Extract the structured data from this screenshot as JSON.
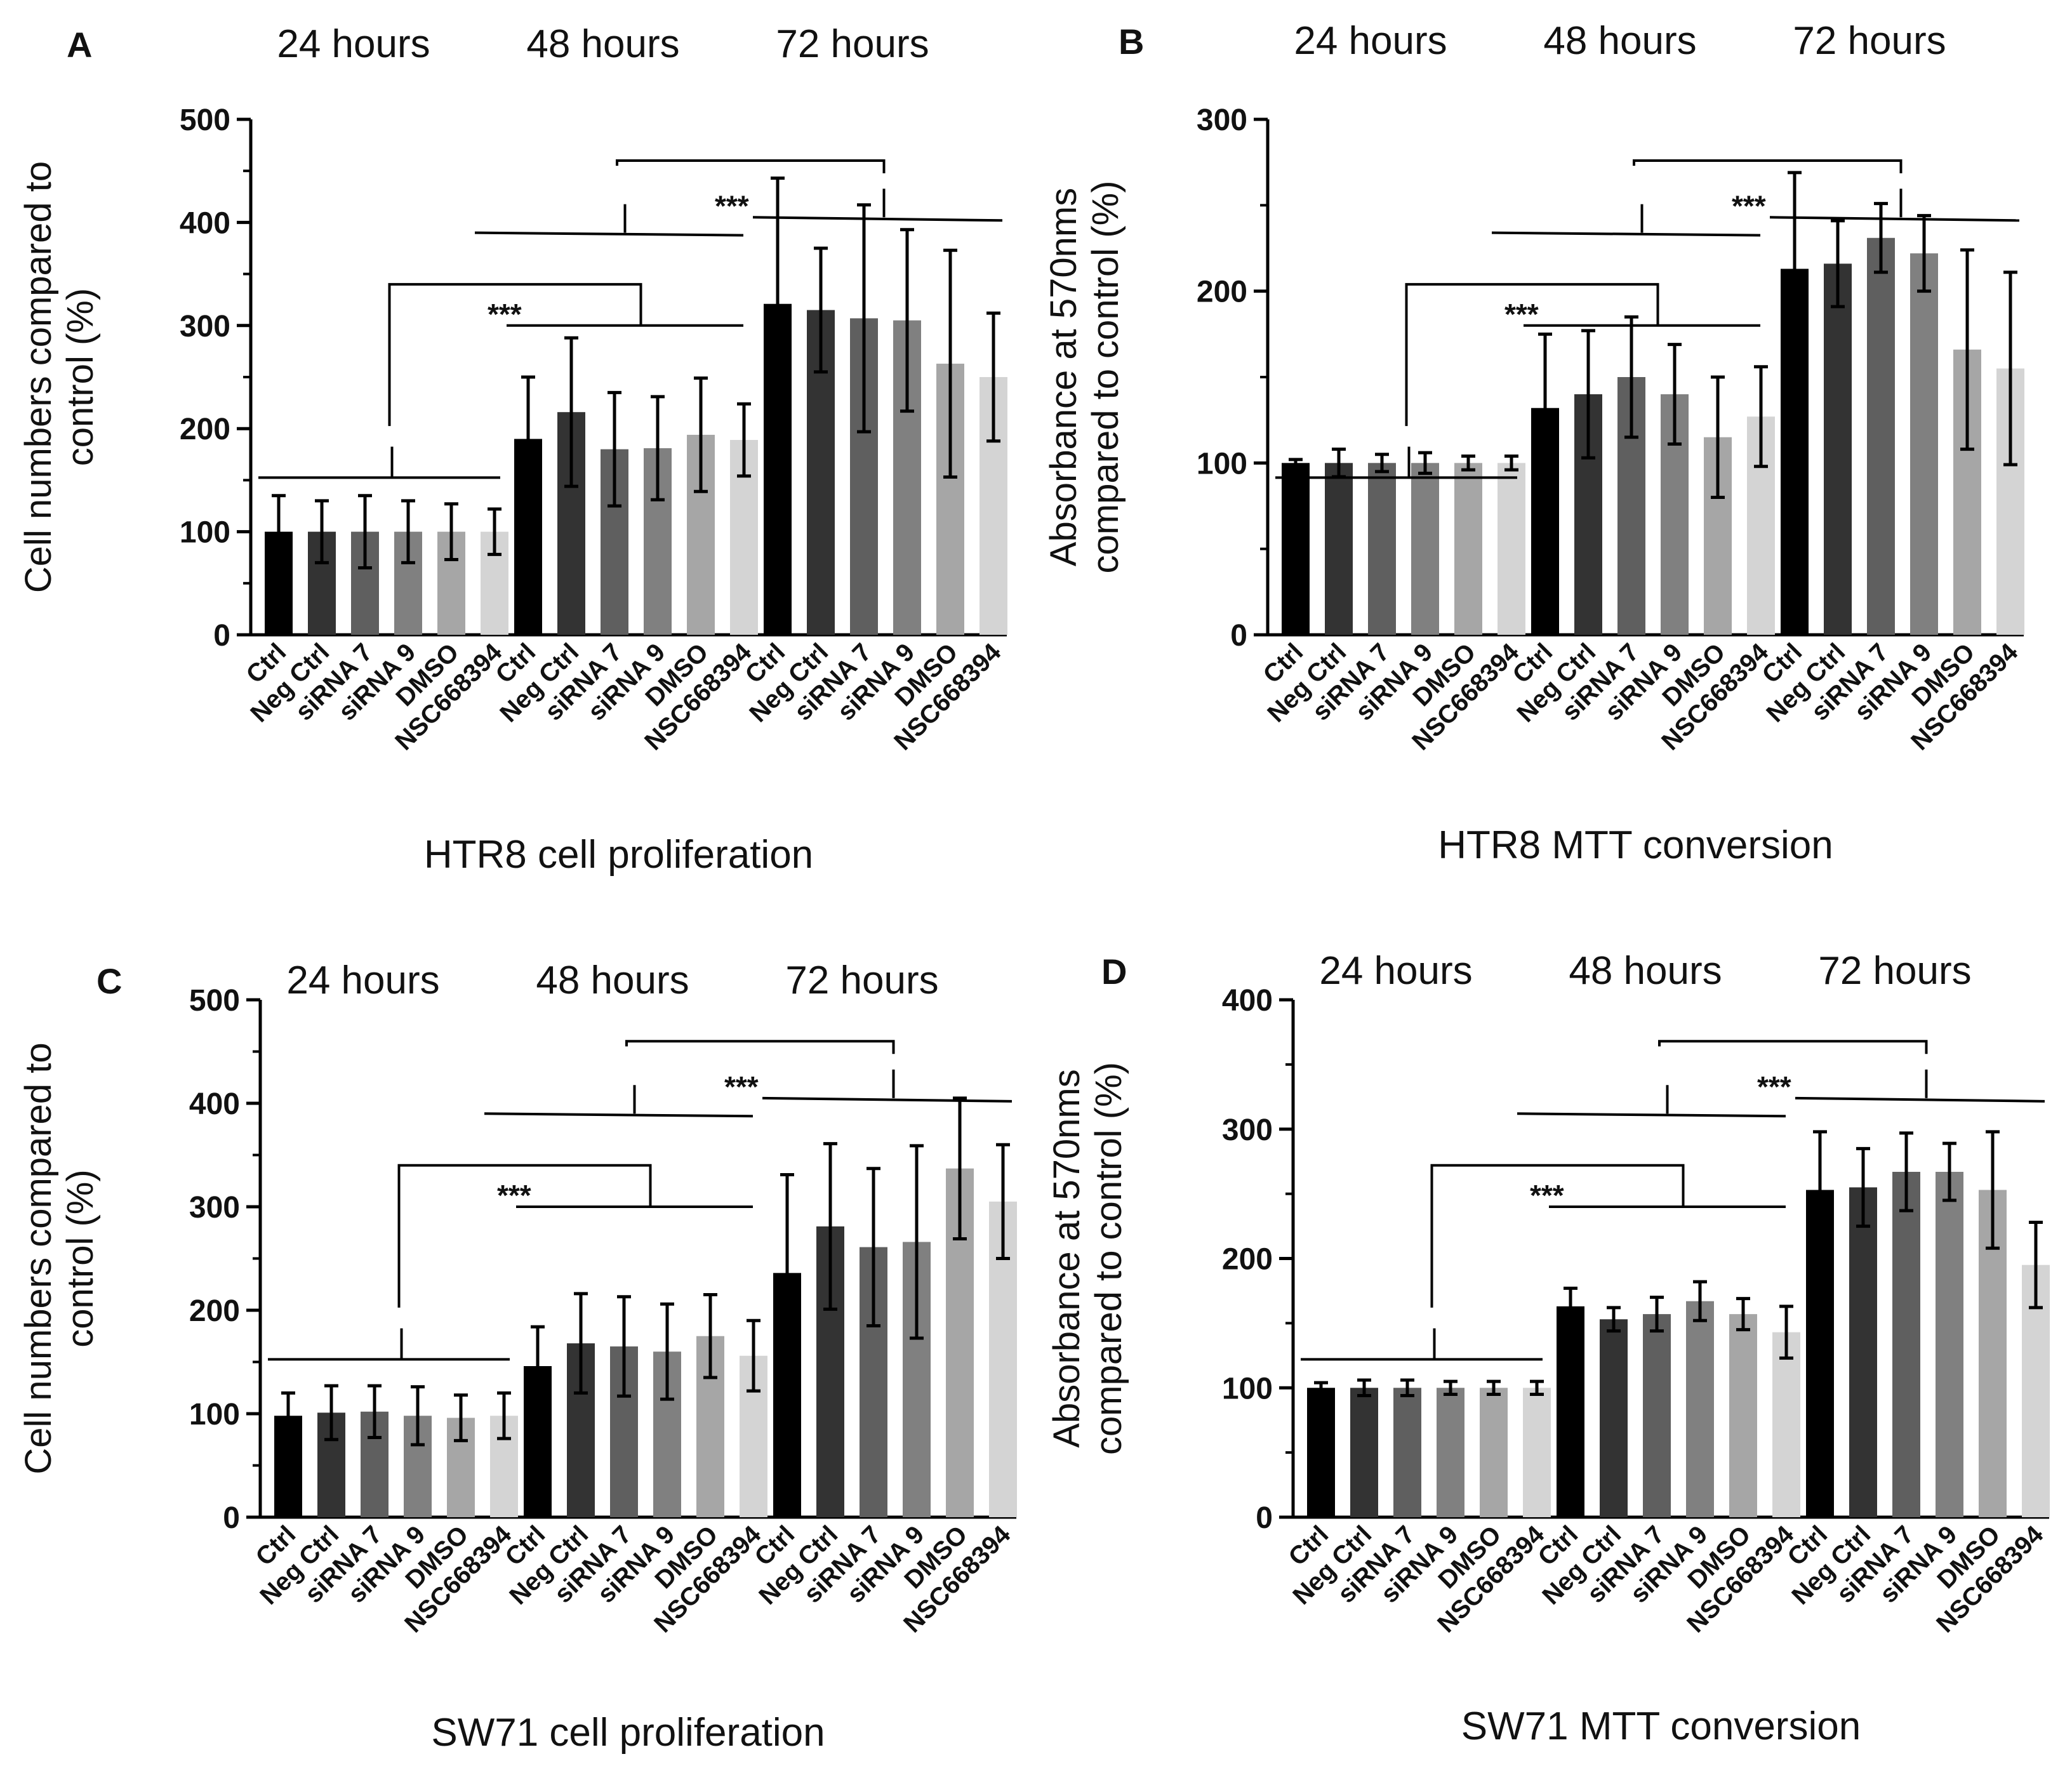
{
  "figure": {
    "category_labels": [
      "Ctrl",
      "Neg Ctrl",
      "siRNA 7",
      "siRNA 9",
      "DMSO",
      "NSC668394"
    ]
  },
  "chart_data": [
    {
      "type": "bar",
      "panel_letter": "A",
      "title": "HTR8 cell proliferation",
      "groups": [
        "24 hours",
        "48 hours",
        "72 hours"
      ],
      "categories": [
        "Ctrl",
        "Neg Ctrl",
        "siRNA 7",
        "siRNA 9",
        "DMSO",
        "NSC668394"
      ],
      "ylabel_lines": [
        "Cell numbers compared to",
        "control (%)"
      ],
      "ylim": [
        0,
        500
      ],
      "yticks": [
        0,
        100,
        200,
        300,
        400,
        500
      ],
      "colors": [
        "#000000",
        "#333333",
        "#5f5f5f",
        "#808080",
        "#a6a6a6",
        "#d4d4d4"
      ],
      "values": [
        [
          100,
          100,
          100,
          100,
          100,
          100
        ],
        [
          190,
          216,
          180,
          181,
          194,
          189
        ],
        [
          321,
          315,
          307,
          305,
          263,
          250
        ]
      ],
      "errors": [
        [
          35,
          30,
          35,
          30,
          27,
          22
        ],
        [
          60,
          72,
          55,
          50,
          55,
          35
        ],
        [
          122,
          60,
          110,
          88,
          110,
          62
        ]
      ],
      "significance": "***"
    },
    {
      "type": "bar",
      "panel_letter": "B",
      "title": "HTR8 MTT conversion",
      "groups": [
        "24 hours",
        "48 hours",
        "72 hours"
      ],
      "categories": [
        "Ctrl",
        "Neg Ctrl",
        "siRNA 7",
        "siRNA 9",
        "DMSO",
        "NSC668394"
      ],
      "ylabel_lines": [
        "Absorbance at 570nms",
        "compared to control (%)"
      ],
      "ylim": [
        0,
        300
      ],
      "yticks": [
        0,
        100,
        200,
        300
      ],
      "colors": [
        "#000000",
        "#333333",
        "#5f5f5f",
        "#808080",
        "#a6a6a6",
        "#d4d4d4"
      ],
      "values": [
        [
          100,
          100,
          100,
          100,
          100,
          100
        ],
        [
          132,
          140,
          150,
          140,
          115,
          127
        ],
        [
          213,
          216,
          231,
          222,
          166,
          155
        ]
      ],
      "errors": [
        [
          2,
          8,
          5,
          6,
          4,
          4
        ],
        [
          43,
          37,
          35,
          29,
          35,
          29
        ],
        [
          56,
          25,
          20,
          22,
          58,
          56
        ]
      ],
      "significance": "***"
    },
    {
      "type": "bar",
      "panel_letter": "C",
      "title": "SW71 cell proliferation",
      "groups": [
        "24 hours",
        "48 hours",
        "72 hours"
      ],
      "categories": [
        "Ctrl",
        "Neg Ctrl",
        "siRNA 7",
        "siRNA 9",
        "DMSO",
        "NSC668394"
      ],
      "ylabel_lines": [
        "Cell numbers compared to",
        "control (%)"
      ],
      "ylim": [
        0,
        500
      ],
      "yticks": [
        0,
        100,
        200,
        300,
        400,
        500
      ],
      "colors": [
        "#000000",
        "#333333",
        "#5f5f5f",
        "#808080",
        "#a6a6a6",
        "#d4d4d4"
      ],
      "values": [
        [
          98,
          101,
          102,
          98,
          96,
          98
        ],
        [
          146,
          168,
          165,
          160,
          175,
          156
        ],
        [
          236,
          281,
          261,
          266,
          337,
          305
        ]
      ],
      "errors": [
        [
          22,
          26,
          25,
          28,
          22,
          22
        ],
        [
          38,
          48,
          48,
          46,
          40,
          34
        ],
        [
          95,
          80,
          76,
          93,
          68,
          55
        ]
      ],
      "significance": "***"
    },
    {
      "type": "bar",
      "panel_letter": "D",
      "title": "SW71 MTT conversion",
      "groups": [
        "24 hours",
        "48 hours",
        "72 hours"
      ],
      "categories": [
        "Ctrl",
        "Neg Ctrl",
        "siRNA 7",
        "siRNA 9",
        "DMSO",
        "NSC668394"
      ],
      "ylabel_lines": [
        "Absorbance at 570nms",
        "compared to control (%)"
      ],
      "ylim": [
        0,
        400
      ],
      "yticks": [
        0,
        100,
        200,
        300,
        400
      ],
      "colors": [
        "#000000",
        "#333333",
        "#5f5f5f",
        "#808080",
        "#a6a6a6",
        "#d4d4d4"
      ],
      "values": [
        [
          100,
          100,
          100,
          100,
          100,
          100
        ],
        [
          163,
          153,
          157,
          167,
          157,
          143
        ],
        [
          253,
          255,
          267,
          267,
          253,
          195
        ]
      ],
      "errors": [
        [
          4,
          6,
          6,
          5,
          5,
          5
        ],
        [
          14,
          9,
          13,
          15,
          12,
          20
        ],
        [
          45,
          30,
          30,
          22,
          45,
          33
        ]
      ],
      "significance": "***"
    }
  ]
}
